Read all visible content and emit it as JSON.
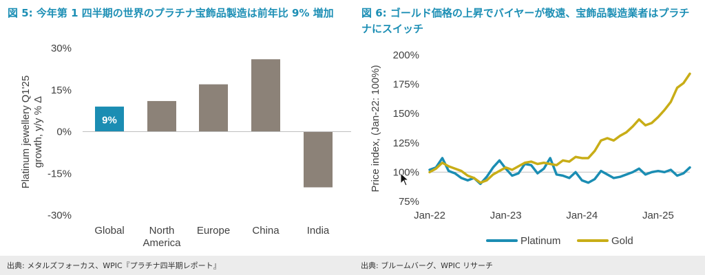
{
  "left_chart": {
    "title": "図 5: 今年第 1 四半期の世界のプラチナ宝飾品製造は前年比 9% 増加",
    "source": "出典: メタルズフォーカス、WPIC『プラチナ四半期レポート』",
    "chart_data": {
      "type": "bar",
      "title": "図 5: 今年第 1 四半期の世界のプラチナ宝飾品製造は前年比 9% 増加",
      "ylabel": "Platinum jewellery Q1'25 growth, y/y % Δ",
      "ylabel_lines": [
        "Platinum jewellery Q1'25",
        "growth, y/y % Δ"
      ],
      "categories": [
        "Global",
        "North America",
        "Europe",
        "China",
        "India"
      ],
      "category_lines": [
        [
          "Global"
        ],
        [
          "North",
          "America"
        ],
        [
          "Europe"
        ],
        [
          "China"
        ],
        [
          "India"
        ]
      ],
      "values": [
        9,
        11,
        17,
        26,
        -20
      ],
      "data_labels": [
        "9%",
        "",
        "",
        "",
        ""
      ],
      "ylim": [
        -30,
        30
      ],
      "yticks": [
        30,
        15,
        0,
        -15,
        -30
      ],
      "ytick_labels": [
        "30%",
        "15%",
        "0%",
        "-15%",
        "-30%"
      ],
      "grid": false
    },
    "colors": {
      "highlight": "#1b8db3",
      "bar": "#8c8278",
      "axis": "#bfbfbf"
    }
  },
  "right_chart": {
    "title": "図 6: ゴールド価格の上昇でバイヤーが敬遠、宝飾品製造業者はプラチナにスイッチ",
    "source": "出典: ブルームバーグ、WPIC リサーチ",
    "chart_data": {
      "type": "line",
      "ylabel": "Price index, (Jan-22: 100%)",
      "x_start": "2022-01",
      "x_end": "2025-06",
      "xticks": [
        "Jan-22",
        "Jan-23",
        "Jan-24",
        "Jan-25"
      ],
      "ylim": [
        75,
        200
      ],
      "yticks": [
        200,
        175,
        150,
        125,
        100,
        75
      ],
      "ytick_labels": [
        "200%",
        "175%",
        "150%",
        "125%",
        "100%",
        "75%"
      ],
      "reference_line": 100,
      "legend_position": "bottom",
      "x": [
        "2022-01",
        "2022-02",
        "2022-03",
        "2022-04",
        "2022-05",
        "2022-06",
        "2022-07",
        "2022-08",
        "2022-09",
        "2022-10",
        "2022-11",
        "2022-12",
        "2023-01",
        "2023-02",
        "2023-03",
        "2023-04",
        "2023-05",
        "2023-06",
        "2023-07",
        "2023-08",
        "2023-09",
        "2023-10",
        "2023-11",
        "2023-12",
        "2024-01",
        "2024-02",
        "2024-03",
        "2024-04",
        "2024-05",
        "2024-06",
        "2024-07",
        "2024-08",
        "2024-09",
        "2024-10",
        "2024-11",
        "2024-12",
        "2025-01",
        "2025-02",
        "2025-03",
        "2025-04",
        "2025-05",
        "2025-06"
      ],
      "series": [
        {
          "name": "Platinum",
          "color": "#1b8db3",
          "values": [
            102,
            104,
            112,
            101,
            99,
            95,
            93,
            95,
            90,
            96,
            104,
            110,
            103,
            97,
            99,
            107,
            106,
            99,
            103,
            112,
            98,
            97,
            95,
            100,
            93,
            91,
            94,
            101,
            98,
            95,
            96,
            98,
            100,
            103,
            98,
            100,
            101,
            100,
            102,
            97,
            99,
            104
          ]
        },
        {
          "name": "Gold",
          "color": "#c8ad17",
          "values": [
            100,
            103,
            108,
            105,
            103,
            101,
            97,
            95,
            91,
            93,
            98,
            101,
            104,
            102,
            105,
            108,
            109,
            107,
            108,
            107,
            106,
            110,
            109,
            113,
            112,
            112,
            118,
            127,
            129,
            127,
            131,
            134,
            139,
            145,
            140,
            142,
            147,
            153,
            160,
            172,
            176,
            184
          ]
        }
      ]
    }
  },
  "icons": {
    "cursor": "mouse-pointer-icon"
  }
}
